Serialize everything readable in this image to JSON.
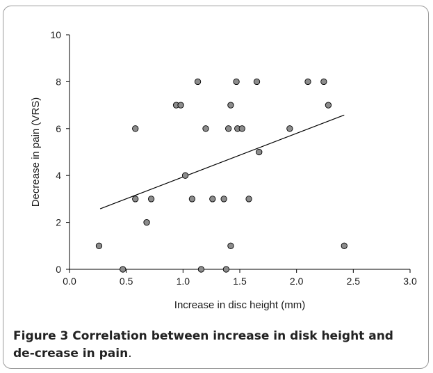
{
  "chart_data": {
    "type": "scatter",
    "title": "",
    "xlabel": "Increase in disc height (mm)",
    "ylabel": "Decrease in pain (VRS)",
    "xlim": [
      0.0,
      3.0
    ],
    "ylim": [
      0,
      10
    ],
    "x_ticks": [
      "0.0",
      "0.5",
      "1.0",
      "1.5",
      "2.0",
      "2.5",
      "3.0"
    ],
    "y_ticks": [
      "0",
      "2",
      "4",
      "6",
      "8",
      "10"
    ],
    "grid": false,
    "legend": "none",
    "point_color": "#8c8c8c",
    "series": [
      {
        "points": [
          {
            "x": 0.26,
            "y": 1
          },
          {
            "x": 0.47,
            "y": 0
          },
          {
            "x": 0.58,
            "y": 6
          },
          {
            "x": 0.58,
            "y": 3
          },
          {
            "x": 0.68,
            "y": 2
          },
          {
            "x": 0.72,
            "y": 3
          },
          {
            "x": 0.94,
            "y": 7
          },
          {
            "x": 0.98,
            "y": 7
          },
          {
            "x": 1.02,
            "y": 4
          },
          {
            "x": 1.08,
            "y": 3
          },
          {
            "x": 1.13,
            "y": 8
          },
          {
            "x": 1.16,
            "y": 0
          },
          {
            "x": 1.2,
            "y": 6
          },
          {
            "x": 1.26,
            "y": 3
          },
          {
            "x": 1.36,
            "y": 3
          },
          {
            "x": 1.38,
            "y": 0
          },
          {
            "x": 1.4,
            "y": 6
          },
          {
            "x": 1.42,
            "y": 7
          },
          {
            "x": 1.42,
            "y": 1
          },
          {
            "x": 1.47,
            "y": 8
          },
          {
            "x": 1.48,
            "y": 6
          },
          {
            "x": 1.52,
            "y": 6
          },
          {
            "x": 1.58,
            "y": 3
          },
          {
            "x": 1.65,
            "y": 8
          },
          {
            "x": 1.67,
            "y": 5
          },
          {
            "x": 1.94,
            "y": 6
          },
          {
            "x": 2.1,
            "y": 8
          },
          {
            "x": 2.24,
            "y": 8
          },
          {
            "x": 2.28,
            "y": 7
          },
          {
            "x": 2.42,
            "y": 1
          }
        ]
      }
    ],
    "trendline": {
      "x": [
        0.27,
        2.42
      ],
      "y": [
        2.58,
        6.58
      ]
    }
  },
  "caption": {
    "label": "Figure 3",
    "text": " Correlation between increase in disk height and de-crease in pain",
    "end": "."
  }
}
